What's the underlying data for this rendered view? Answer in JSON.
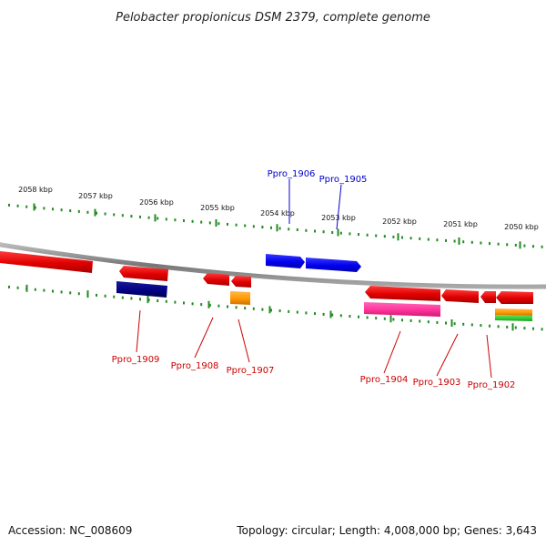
{
  "title": "Pelobacter propionicus DSM 2379, complete genome",
  "footer": {
    "accession": "Accession: NC_008609",
    "summary": "Topology: circular; Length: 4,008,000 bp; Genes: 3,643"
  },
  "kbp_labels": [
    "2058 kbp",
    "2057 kbp",
    "2056 kbp",
    "2055 kbp",
    "2054 kbp",
    "2053 kbp",
    "2052 kbp",
    "2051 kbp",
    "2050 kbp"
  ],
  "gene_labels_forward": [
    "Ppro_1906",
    "Ppro_1905"
  ],
  "gene_labels_reverse": [
    "Ppro_1909",
    "Ppro_1908",
    "Ppro_1907",
    "Ppro_1904",
    "Ppro_1903",
    "Ppro_1902"
  ],
  "colors": {
    "forward_cds": "#0000ee",
    "reverse_cds": "#ee0000",
    "reverse_label": "#cc0000",
    "forward_label": "#0000cc",
    "backbone": "#888888",
    "ticks": "#228b22",
    "navy_feature": "#000080",
    "orange_feature": "#ff9900",
    "magenta_feature": "#ff3399",
    "green_feature": "#33cc33"
  }
}
